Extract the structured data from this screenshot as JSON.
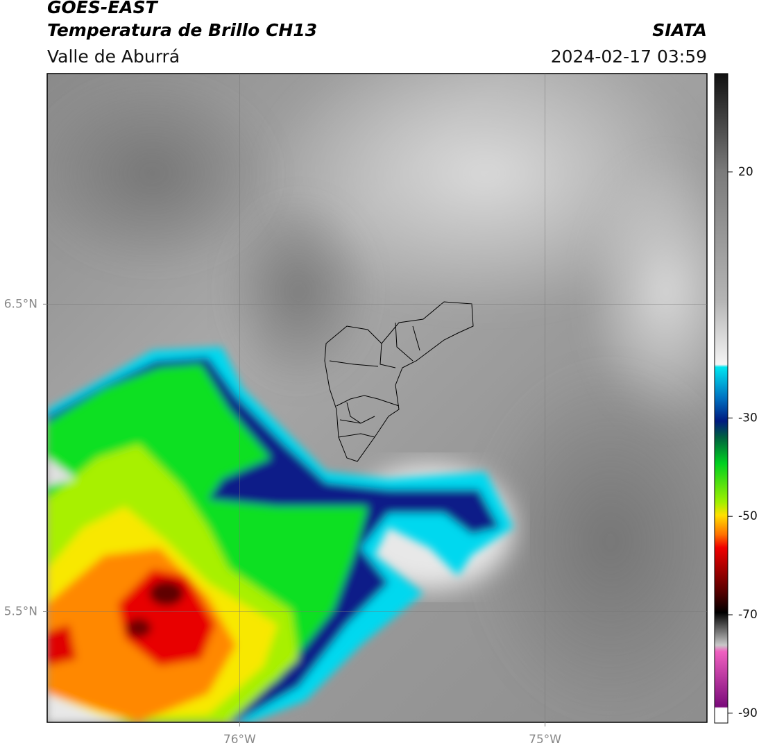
{
  "header": {
    "title": "GOES-EAST",
    "subtitle": "Temperatura de Brillo CH13",
    "region": "Valle de Aburrá",
    "source": "SIATA",
    "datetime": "2024-02-17 03:59"
  },
  "map": {
    "lonlim": [
      -76.63,
      -74.47
    ],
    "latlim": [
      5.14,
      7.25
    ],
    "xticks": [
      {
        "value": -76,
        "label": "76°W"
      },
      {
        "value": -75,
        "label": "75°W"
      }
    ],
    "yticks": [
      {
        "value": 6.5,
        "label": "6.5°N"
      },
      {
        "value": 5.5,
        "label": "5.5°N"
      }
    ],
    "grid": true
  },
  "colorbar": {
    "lim": [
      -92,
      40
    ],
    "ticks": [
      20,
      -30,
      -50,
      -70,
      -90
    ]
  }
}
